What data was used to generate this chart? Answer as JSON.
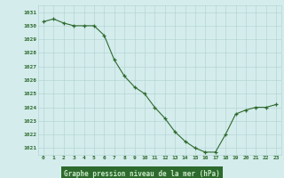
{
  "x": [
    0,
    1,
    2,
    3,
    4,
    5,
    6,
    7,
    8,
    9,
    10,
    11,
    12,
    13,
    14,
    15,
    16,
    17,
    18,
    19,
    20,
    21,
    22,
    23
  ],
  "y": [
    1030.3,
    1030.5,
    1030.2,
    1030.0,
    1030.0,
    1030.0,
    1029.3,
    1027.5,
    1026.3,
    1025.5,
    1025.0,
    1024.0,
    1023.2,
    1022.2,
    1021.5,
    1021.0,
    1020.7,
    1020.7,
    1022.0,
    1023.5,
    1023.8,
    1024.0,
    1024.0,
    1024.2
  ],
  "ylim": [
    1020.5,
    1031.5
  ],
  "yticks": [
    1021,
    1022,
    1023,
    1024,
    1025,
    1026,
    1027,
    1028,
    1029,
    1030,
    1031
  ],
  "xticks": [
    0,
    1,
    2,
    3,
    4,
    5,
    6,
    7,
    8,
    9,
    10,
    11,
    12,
    13,
    14,
    15,
    16,
    17,
    18,
    19,
    20,
    21,
    22,
    23
  ],
  "xlabel": "Graphe pression niveau de la mer (hPa)",
  "line_color": "#2d6a2d",
  "marker_color": "#2d6a2d",
  "bg_color": "#d4ecec",
  "grid_color": "#b0d0d0",
  "tick_label_color": "#2d6a2d",
  "xlabel_bg": "#2d6a2d",
  "xlabel_fg": "#c8e8c8"
}
